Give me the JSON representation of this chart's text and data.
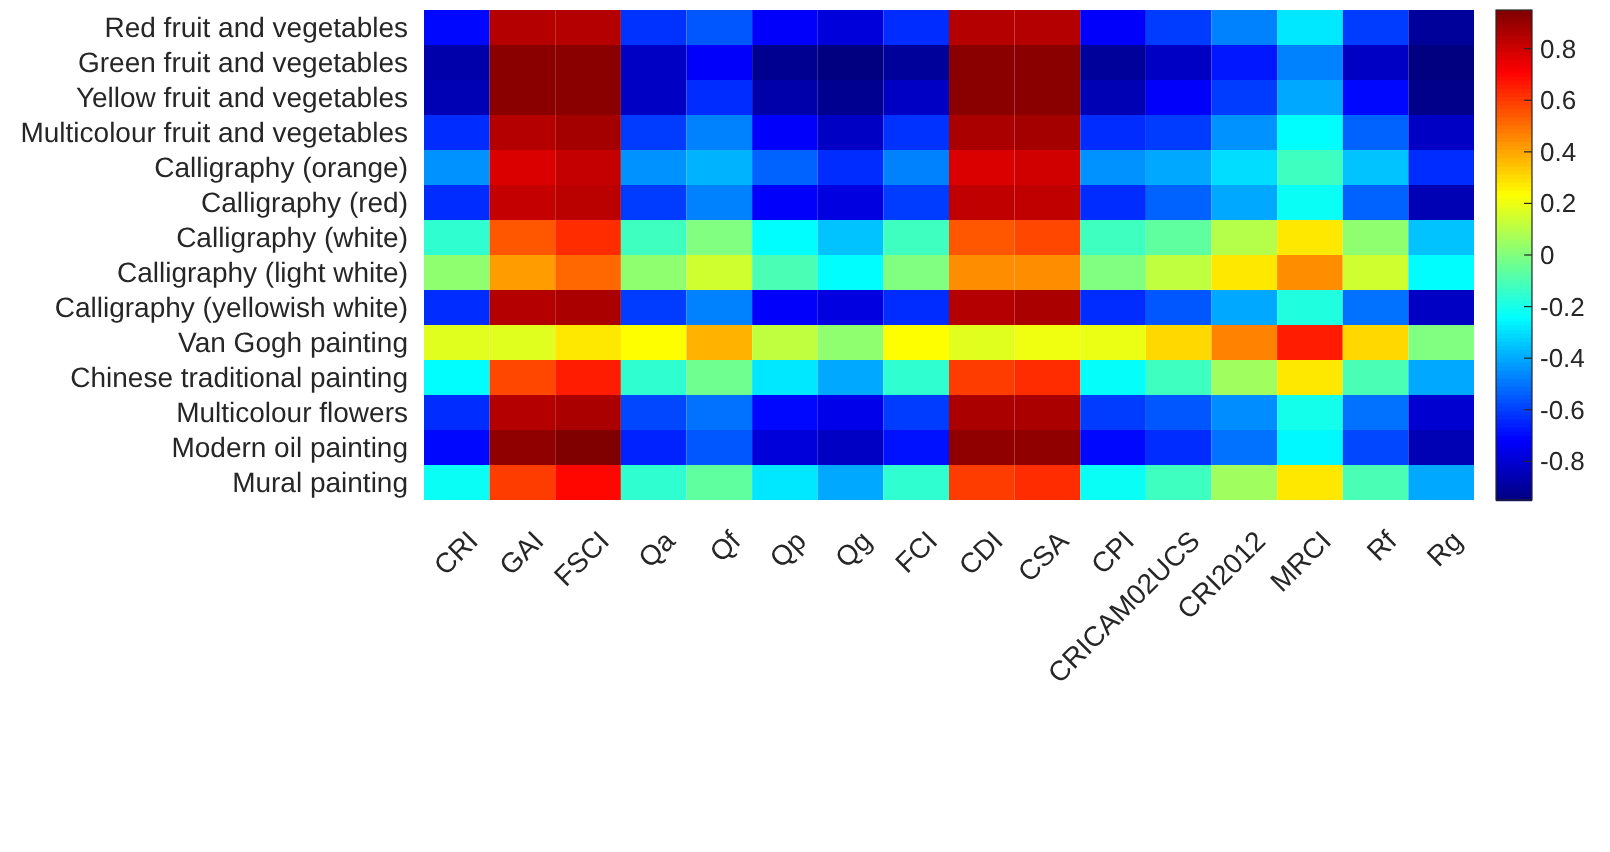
{
  "chart_data": {
    "type": "heatmap",
    "categories": [
      "CRI",
      "GAI",
      "FSCI",
      "Qa",
      "Qf",
      "Qp",
      "Qg",
      "FCI",
      "CDI",
      "CSA",
      "CPI",
      "CRICAM02UCS",
      "CRI2012",
      "MRCI",
      "Rf",
      "Rg"
    ],
    "y_categories": [
      "Red fruit and vegetables",
      "Green fruit and vegetables",
      "Yellow fruit and vegetables",
      "Multicolour fruit and vegetables",
      "Calligraphy (orange)",
      "Calligraphy (red)",
      "Calligraphy (white)",
      "Calligraphy (light white)",
      "Calligraphy (yellowish white)",
      "Van Gogh painting",
      "Chinese traditional painting",
      "Multicolour flowers",
      "Modern oil painting",
      "Mural painting"
    ],
    "cells": [
      [
        -0.7,
        0.85,
        0.85,
        -0.62,
        -0.55,
        -0.72,
        -0.78,
        -0.63,
        0.85,
        0.85,
        -0.72,
        -0.6,
        -0.47,
        -0.28,
        -0.6,
        -0.9
      ],
      [
        -0.87,
        0.93,
        0.93,
        -0.82,
        -0.72,
        -0.92,
        -0.95,
        -0.9,
        0.93,
        0.93,
        -0.9,
        -0.82,
        -0.67,
        -0.47,
        -0.82,
        -0.95
      ],
      [
        -0.85,
        0.93,
        0.93,
        -0.82,
        -0.63,
        -0.87,
        -0.92,
        -0.82,
        0.93,
        0.93,
        -0.85,
        -0.72,
        -0.6,
        -0.4,
        -0.7,
        -0.93
      ],
      [
        -0.63,
        0.85,
        0.88,
        -0.6,
        -0.47,
        -0.72,
        -0.82,
        -0.62,
        0.87,
        0.88,
        -0.63,
        -0.6,
        -0.44,
        -0.24,
        -0.53,
        -0.82
      ],
      [
        -0.44,
        0.78,
        0.82,
        -0.44,
        -0.38,
        -0.53,
        -0.63,
        -0.47,
        0.78,
        0.8,
        -0.44,
        -0.4,
        -0.3,
        -0.12,
        -0.35,
        -0.63
      ],
      [
        -0.63,
        0.82,
        0.84,
        -0.6,
        -0.47,
        -0.72,
        -0.77,
        -0.6,
        0.83,
        0.83,
        -0.63,
        -0.53,
        -0.4,
        -0.22,
        -0.53,
        -0.85
      ],
      [
        -0.15,
        0.55,
        0.63,
        -0.12,
        0,
        -0.24,
        -0.35,
        -0.12,
        0.55,
        0.58,
        -0.12,
        -0.06,
        0.1,
        0.28,
        0.03,
        -0.35
      ],
      [
        0.03,
        0.42,
        0.52,
        0.03,
        0.15,
        -0.1,
        -0.24,
        0,
        0.45,
        0.45,
        0,
        0.12,
        0.28,
        0.45,
        0.15,
        -0.24
      ],
      [
        -0.63,
        0.85,
        0.87,
        -0.6,
        -0.47,
        -0.72,
        -0.77,
        -0.63,
        0.85,
        0.87,
        -0.63,
        -0.55,
        -0.4,
        -0.18,
        -0.5,
        -0.82
      ],
      [
        0.18,
        0.18,
        0.28,
        0.24,
        0.38,
        0.12,
        0.03,
        0.24,
        0.18,
        0.21,
        0.2,
        0.31,
        0.47,
        0.66,
        0.31,
        0
      ],
      [
        -0.24,
        0.58,
        0.66,
        -0.15,
        -0.03,
        -0.28,
        -0.4,
        -0.15,
        0.6,
        0.63,
        -0.23,
        -0.12,
        0.06,
        0.28,
        -0.1,
        -0.4
      ],
      [
        -0.63,
        0.85,
        0.87,
        -0.58,
        -0.5,
        -0.7,
        -0.75,
        -0.6,
        0.87,
        0.87,
        -0.6,
        -0.55,
        -0.45,
        -0.2,
        -0.5,
        -0.8
      ],
      [
        -0.7,
        0.92,
        0.95,
        -0.65,
        -0.55,
        -0.78,
        -0.82,
        -0.68,
        0.92,
        0.92,
        -0.7,
        -0.63,
        -0.5,
        -0.25,
        -0.58,
        -0.85
      ],
      [
        -0.22,
        0.6,
        0.7,
        -0.15,
        -0.06,
        -0.28,
        -0.4,
        -0.15,
        0.6,
        0.63,
        -0.22,
        -0.12,
        0.06,
        0.28,
        -0.1,
        -0.4
      ]
    ],
    "clim": [
      -0.95,
      0.95
    ],
    "cticks": [
      -0.8,
      -0.6,
      -0.4,
      -0.2,
      0,
      0.2,
      0.4,
      0.6,
      0.8
    ]
  }
}
